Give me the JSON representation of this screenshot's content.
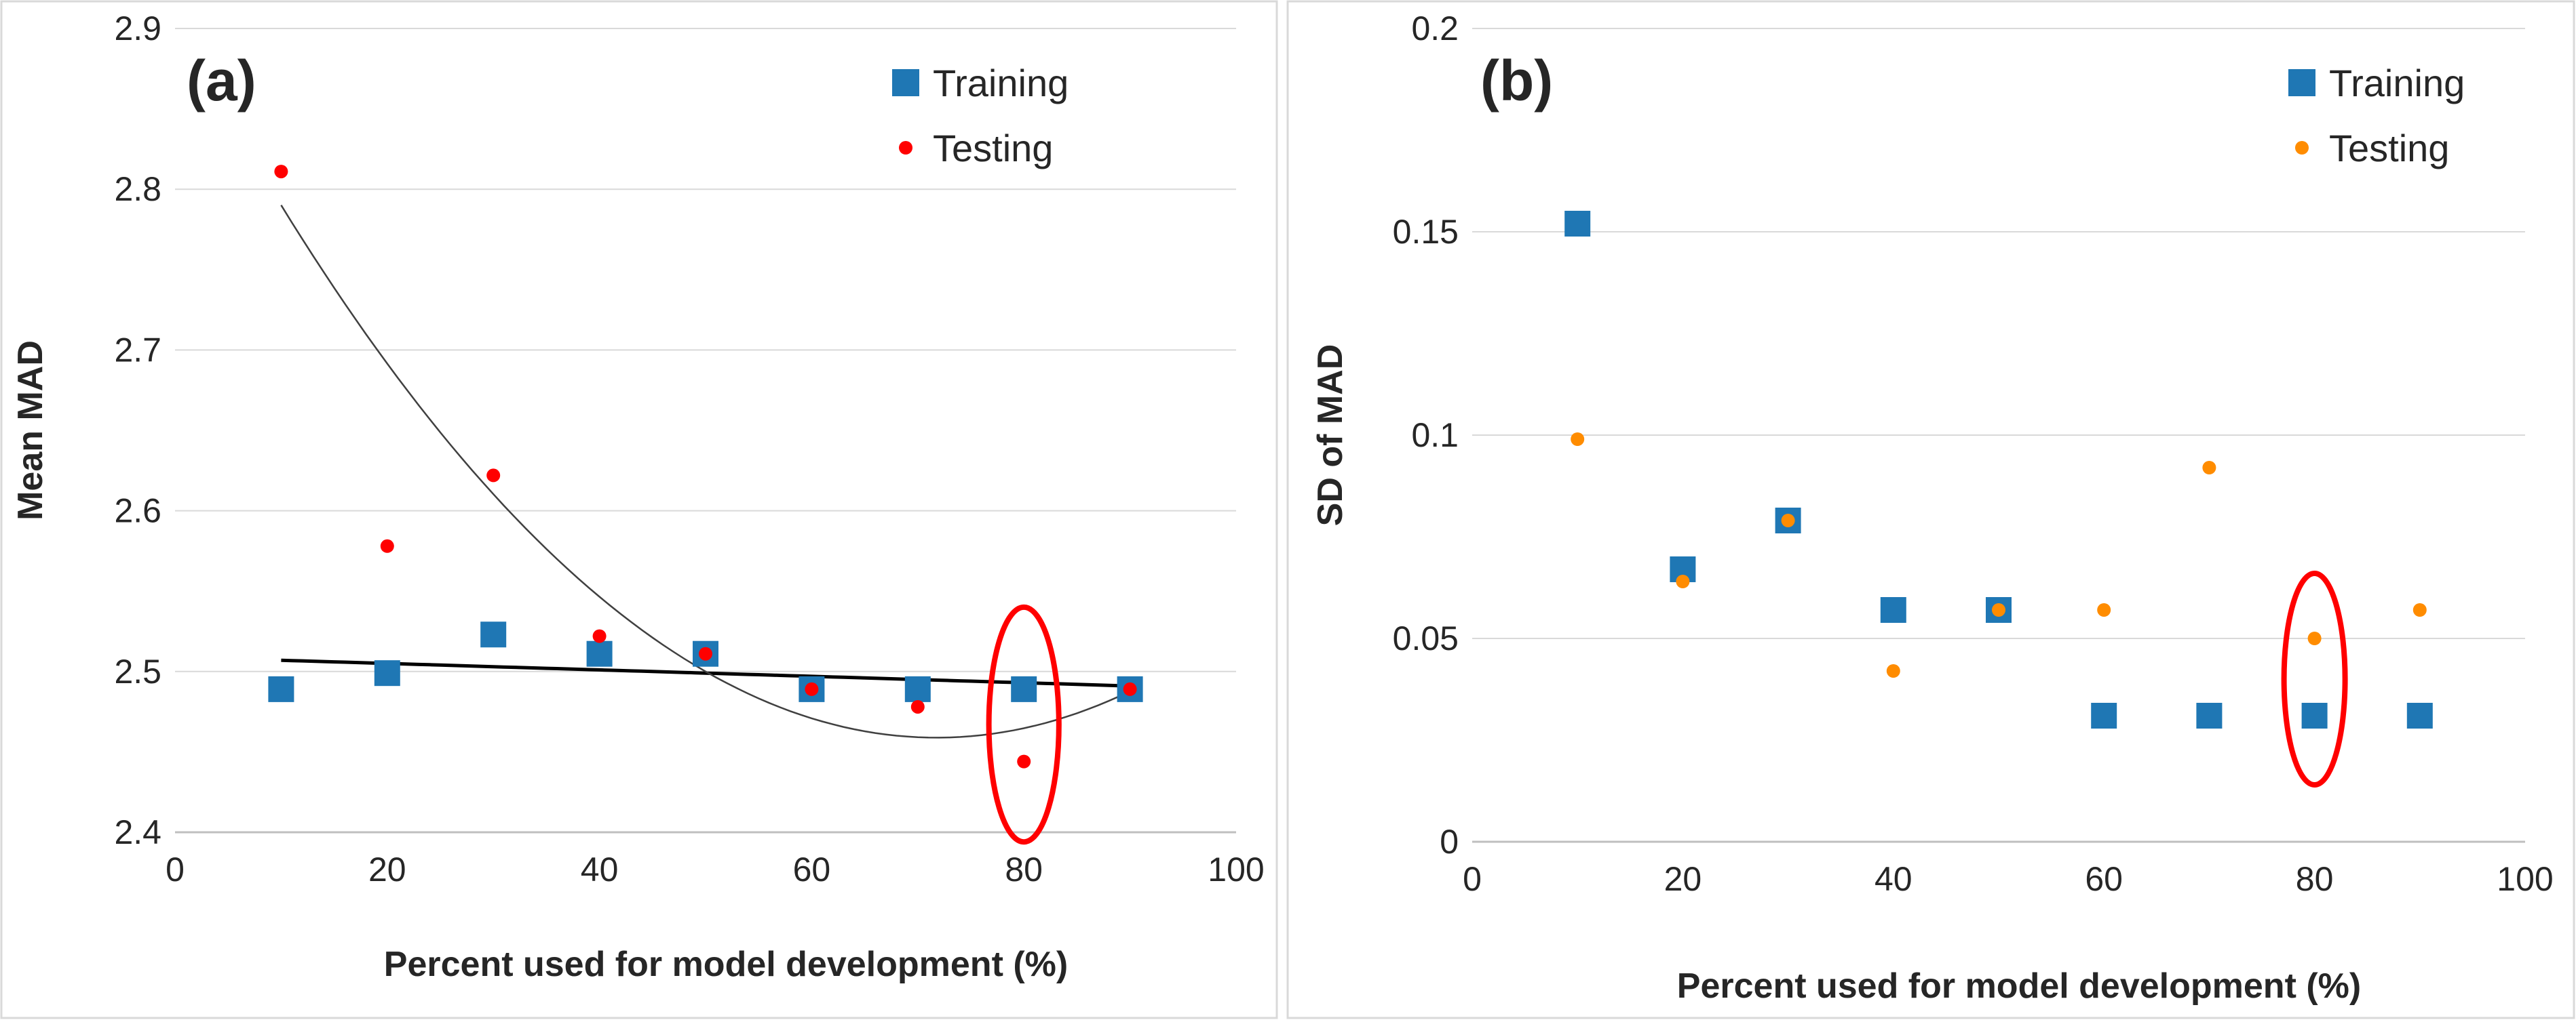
{
  "chart_data": [
    {
      "type": "scatter",
      "panel_label": "(a)",
      "xlabel": "Percent used for model development (%)",
      "ylabel": "Mean MAD",
      "xlim": [
        0,
        100
      ],
      "ylim": [
        2.4,
        2.9
      ],
      "xticks": [
        0,
        20,
        40,
        60,
        80,
        100
      ],
      "yticks": [
        2.4,
        2.5,
        2.6,
        2.7,
        2.8,
        2.9
      ],
      "xtick_labels": [
        "0",
        "20",
        "40",
        "60",
        "80",
        "100"
      ],
      "ytick_labels": [
        "2.4",
        "2.5",
        "2.6",
        "2.7",
        "2.8",
        "2.9"
      ],
      "grid": "horizontal",
      "legend_position": "top-right",
      "series": [
        {
          "name": "Training",
          "marker": "square",
          "color": "#1f77b4",
          "x": [
            10,
            20,
            30,
            40,
            50,
            60,
            70,
            80,
            90
          ],
          "y": [
            2.489,
            2.499,
            2.523,
            2.511,
            2.511,
            2.489,
            2.489,
            2.489,
            2.489
          ]
        },
        {
          "name": "Testing",
          "marker": "circle",
          "color": "#ff0000",
          "x": [
            10,
            20,
            30,
            40,
            50,
            60,
            70,
            80,
            90
          ],
          "y": [
            2.811,
            2.578,
            2.622,
            2.522,
            2.511,
            2.489,
            2.478,
            2.444,
            2.489
          ]
        }
      ],
      "trendlines": [
        {
          "kind": "linear",
          "color": "#000000",
          "x_range": [
            10,
            90
          ],
          "coef": [
            2.509,
            -0.0002
          ]
        },
        {
          "kind": "quadratic",
          "color": "#404040",
          "x_range": [
            10,
            90
          ],
          "coef": [
            2.906,
            -0.01246,
            8.68e-05
          ]
        }
      ],
      "highlight": {
        "shape": "ellipse",
        "color": "#ff0000",
        "center_x": 80,
        "center_y": 2.467,
        "rx": 3.3,
        "ry": 0.073
      }
    },
    {
      "type": "scatter",
      "panel_label": "(b)",
      "xlabel": "Percent used for model development (%)",
      "ylabel": "SD of MAD",
      "xlim": [
        0,
        100
      ],
      "ylim": [
        0,
        0.2
      ],
      "xticks": [
        0,
        20,
        40,
        60,
        80,
        100
      ],
      "yticks": [
        0,
        0.05,
        0.1,
        0.15,
        0.2
      ],
      "xtick_labels": [
        "0",
        "20",
        "40",
        "60",
        "80",
        "100"
      ],
      "ytick_labels": [
        "0",
        "0.05",
        "0.1",
        "0.15",
        "0.2"
      ],
      "grid": "horizontal",
      "legend_position": "top-right",
      "series": [
        {
          "name": "Training",
          "marker": "square",
          "color": "#1f77b4",
          "x": [
            10,
            20,
            30,
            40,
            50,
            60,
            70,
            80,
            90
          ],
          "y": [
            0.152,
            0.067,
            0.079,
            0.057,
            0.057,
            0.031,
            0.031,
            0.031,
            0.031
          ]
        },
        {
          "name": "Testing",
          "marker": "circle",
          "color": "#ff8c00",
          "x": [
            10,
            20,
            30,
            40,
            50,
            60,
            70,
            80,
            90
          ],
          "y": [
            0.099,
            0.064,
            0.079,
            0.042,
            0.057,
            0.057,
            0.092,
            0.05,
            0.057
          ]
        }
      ],
      "highlight": {
        "shape": "ellipse",
        "color": "#ff0000",
        "center_x": 80,
        "center_y": 0.04,
        "rx": 2.9,
        "ry": 0.026
      }
    }
  ]
}
